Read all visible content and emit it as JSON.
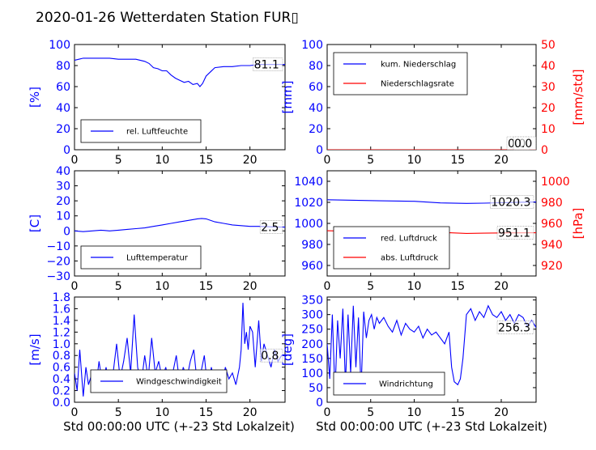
{
  "title": "2020-01-26 Wetterdaten Station FUR▯",
  "xlabel": "Std 00:00:00 UTC (+-23 Std Lokalzeit)",
  "chart_data": [
    {
      "type": "line",
      "ylabel": "[%]",
      "ylim": [
        0,
        100
      ],
      "yticks": [
        "0",
        "20",
        "40",
        "60",
        "80",
        "100"
      ],
      "xlim": [
        0,
        24
      ],
      "xticks": [
        "0",
        "5",
        "10",
        "15",
        "20"
      ],
      "legend": "lower-left",
      "series": [
        {
          "name": "rel. Luftfeuchte",
          "color": "#0000ff",
          "x": [
            0,
            0.5,
            1,
            2,
            3,
            4,
            5,
            6,
            7,
            8,
            8.5,
            9,
            9.5,
            10,
            10.5,
            11,
            11.5,
            12,
            12.5,
            13,
            13.5,
            14,
            14.3,
            14.6,
            15,
            15.5,
            16,
            17,
            18,
            19,
            20,
            21,
            22,
            23,
            24
          ],
          "y": [
            85,
            86,
            87,
            87,
            87,
            87,
            86,
            86,
            86,
            84,
            82,
            78,
            77,
            75,
            75,
            71,
            68,
            66,
            64,
            65,
            62,
            63,
            60,
            63,
            70,
            74,
            78,
            79,
            79,
            80,
            80,
            81,
            81,
            81,
            81
          ]
        }
      ],
      "annotation": "81.1"
    },
    {
      "type": "line",
      "ylabel": "[mm]",
      "ylim": [
        0,
        100
      ],
      "yticks": [
        "0",
        "20",
        "40",
        "60",
        "80",
        "100"
      ],
      "y2label": "[mm/std]",
      "y2lim": [
        0,
        50
      ],
      "y2ticks": [
        "0",
        "10",
        "20",
        "30",
        "40",
        "50"
      ],
      "xlim": [
        0,
        24
      ],
      "xticks": [
        "0",
        "5",
        "10",
        "15",
        "20"
      ],
      "legend": "upper-left",
      "series": [
        {
          "name": "kum. Niederschlag",
          "color": "#0000ff",
          "x": [
            0,
            24
          ],
          "y": [
            0,
            0
          ]
        },
        {
          "name": "Niederschlagsrate",
          "color": "#ff0000",
          "x": [
            0,
            24
          ],
          "y": [
            0,
            0
          ],
          "axis": "right"
        }
      ],
      "annotations": [
        "0.0",
        "0.0"
      ]
    },
    {
      "type": "line",
      "ylabel": "[C]",
      "ylim": [
        -30,
        40
      ],
      "yticks": [
        "−30",
        "−20",
        "−10",
        "0",
        "10",
        "20",
        "30",
        "40"
      ],
      "xlim": [
        0,
        24
      ],
      "xticks": [
        "0",
        "5",
        "10",
        "15",
        "20"
      ],
      "legend": "lower-left",
      "series": [
        {
          "name": "Lufttemperatur",
          "color": "#0000ff",
          "x": [
            0,
            1,
            2,
            3,
            4,
            5,
            6,
            7,
            8,
            9,
            10,
            11,
            12,
            13,
            14,
            14.5,
            15,
            16,
            17,
            18,
            19,
            20,
            21,
            22,
            23,
            24
          ],
          "y": [
            0,
            -0.5,
            0,
            0.5,
            0,
            0.5,
            1,
            1.5,
            2,
            3,
            4,
            5,
            6,
            7,
            8,
            8.3,
            8,
            6,
            5,
            4,
            3.5,
            3,
            3,
            2.8,
            2.6,
            2.5
          ]
        }
      ],
      "annotation": "2.5"
    },
    {
      "type": "line",
      "ylabel": "",
      "ylim": [
        950,
        1050
      ],
      "yticks": [
        "960",
        "980",
        "1000",
        "1020",
        "1040"
      ],
      "y2label": "[hPa]",
      "y2lim": [
        910,
        1010
      ],
      "y2ticks": [
        "920",
        "940",
        "960",
        "980",
        "1000"
      ],
      "xlim": [
        0,
        24
      ],
      "xticks": [
        "0",
        "5",
        "10",
        "15",
        "20"
      ],
      "legend": "lower-left",
      "series": [
        {
          "name": "red. Luftdruck",
          "color": "#0000ff",
          "x": [
            0,
            3,
            6,
            10,
            13,
            16,
            18,
            20,
            22,
            24
          ],
          "y": [
            1022.5,
            1022,
            1021.5,
            1021,
            1019.5,
            1019,
            1019.2,
            1019.6,
            1020.1,
            1020.3
          ]
        },
        {
          "name": "abs. Luftdruck",
          "color": "#ff0000",
          "axis": "right",
          "x": [
            0,
            3,
            6,
            10,
            13,
            16,
            18,
            20,
            22,
            24
          ],
          "y": [
            953,
            952.5,
            952,
            952,
            951.5,
            950.5,
            950.7,
            950.9,
            951,
            951.1
          ]
        }
      ],
      "annotations": [
        "1020.3",
        "951.1"
      ]
    },
    {
      "type": "line",
      "ylabel": "[m/s]",
      "ylim": [
        0,
        1.8
      ],
      "yticks": [
        "0.0",
        "0.2",
        "0.4",
        "0.6",
        "0.8",
        "1.0",
        "1.2",
        "1.4",
        "1.6",
        "1.8"
      ],
      "xlim": [
        0,
        24
      ],
      "xticks": [
        "0",
        "5",
        "10",
        "15",
        "20"
      ],
      "legend": "lower-center",
      "series": [
        {
          "name": "Windgeschwindigkeit",
          "color": "#0000ff",
          "x": [
            0,
            0.3,
            0.6,
            1,
            1.3,
            1.6,
            2,
            2.4,
            2.8,
            3.2,
            3.6,
            4,
            4.4,
            4.8,
            5.2,
            5.6,
            6,
            6.4,
            6.8,
            7.2,
            7.6,
            8,
            8.4,
            8.8,
            9.2,
            9.6,
            10,
            10.4,
            10.8,
            11.2,
            11.6,
            12,
            12.4,
            12.8,
            13.2,
            13.6,
            14,
            14.4,
            14.8,
            15.2,
            15.6,
            16,
            16.4,
            16.8,
            17.2,
            17.6,
            18,
            18.4,
            18.8,
            19,
            19.2,
            19.4,
            19.6,
            19.8,
            20,
            20.3,
            20.6,
            21,
            21.3,
            21.6,
            22,
            22.4,
            22.8,
            23.2,
            23.6,
            24
          ],
          "y": [
            0.5,
            0.2,
            0.9,
            0.1,
            0.6,
            0.3,
            0.5,
            0.2,
            0.7,
            0.3,
            0.6,
            0.2,
            0.5,
            1.0,
            0.4,
            0.7,
            1.1,
            0.5,
            1.5,
            0.6,
            0.3,
            0.8,
            0.4,
            1.1,
            0.5,
            0.7,
            0.4,
            0.6,
            0.3,
            0.5,
            0.8,
            0.3,
            0.6,
            0.4,
            0.7,
            0.9,
            0.3,
            0.5,
            0.8,
            0.2,
            0.6,
            0.3,
            0.5,
            0.3,
            0.6,
            0.4,
            0.5,
            0.3,
            0.6,
            0.9,
            1.7,
            1.0,
            1.2,
            0.9,
            1.3,
            1.2,
            0.6,
            1.4,
            0.7,
            1.0,
            0.8,
            0.6,
            0.9,
            0.7,
            0.8,
            0.8
          ]
        }
      ],
      "annotation": "0.8"
    },
    {
      "type": "line",
      "ylabel": "[deg]",
      "ylim": [
        0,
        360
      ],
      "yticks": [
        "0",
        "50",
        "100",
        "150",
        "200",
        "250",
        "300",
        "350"
      ],
      "xlim": [
        0,
        24
      ],
      "xticks": [
        "0",
        "5",
        "10",
        "15",
        "20"
      ],
      "legend": "lower-left",
      "series": [
        {
          "name": "Windrichtung",
          "color": "#0000ff",
          "x": [
            0,
            0.3,
            0.6,
            0.9,
            1.2,
            1.5,
            1.8,
            2.1,
            2.4,
            2.7,
            3,
            3.3,
            3.6,
            3.9,
            4.2,
            4.5,
            4.8,
            5.1,
            5.4,
            5.7,
            6,
            6.5,
            7,
            7.5,
            8,
            8.5,
            9,
            9.5,
            10,
            10.5,
            11,
            11.5,
            12,
            12.5,
            13,
            13.5,
            14,
            14.3,
            14.6,
            15,
            15.3,
            15.6,
            16,
            16.5,
            17,
            17.5,
            18,
            18.5,
            19,
            19.5,
            20,
            20.5,
            21,
            21.5,
            22,
            22.5,
            23,
            23.5,
            24
          ],
          "y": [
            200,
            80,
            300,
            30,
            280,
            150,
            320,
            60,
            300,
            100,
            330,
            120,
            290,
            40,
            310,
            220,
            280,
            300,
            250,
            290,
            270,
            290,
            260,
            240,
            280,
            230,
            270,
            250,
            240,
            260,
            220,
            250,
            230,
            240,
            220,
            200,
            240,
            120,
            70,
            60,
            80,
            150,
            300,
            320,
            280,
            310,
            290,
            330,
            300,
            290,
            310,
            280,
            300,
            270,
            300,
            290,
            260,
            280,
            256
          ]
        }
      ],
      "annotation": "256.3"
    }
  ]
}
